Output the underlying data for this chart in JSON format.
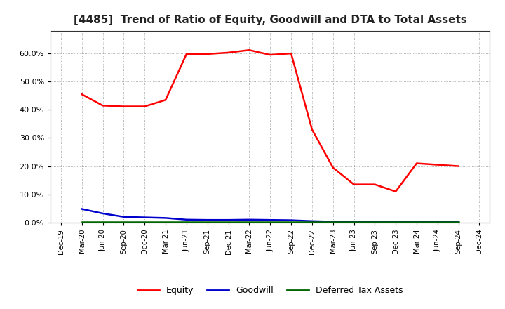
{
  "title": "[4485]  Trend of Ratio of Equity, Goodwill and DTA to Total Assets",
  "title_fontsize": 11,
  "x_labels": [
    "Dec-19",
    "Mar-20",
    "Jun-20",
    "Sep-20",
    "Dec-20",
    "Mar-21",
    "Jun-21",
    "Sep-21",
    "Dec-21",
    "Mar-22",
    "Jun-22",
    "Sep-22",
    "Dec-22",
    "Mar-23",
    "Jun-23",
    "Sep-23",
    "Dec-23",
    "Mar-24",
    "Jun-24",
    "Sep-24",
    "Dec-24"
  ],
  "equity": [
    null,
    45.5,
    41.5,
    41.2,
    41.2,
    43.5,
    59.8,
    59.8,
    60.3,
    61.2,
    59.5,
    60.0,
    33.0,
    19.5,
    13.5,
    13.5,
    11.0,
    21.0,
    20.5,
    20.0,
    null
  ],
  "goodwill": [
    null,
    4.8,
    3.2,
    2.0,
    1.8,
    1.6,
    1.0,
    0.9,
    0.9,
    1.0,
    0.9,
    0.8,
    0.5,
    0.3,
    0.3,
    0.3,
    0.3,
    0.3,
    0.2,
    0.2,
    null
  ],
  "dta": [
    null,
    0.1,
    0.1,
    0.1,
    0.1,
    0.1,
    0.1,
    0.1,
    0.1,
    0.1,
    0.1,
    0.1,
    0.1,
    0.1,
    0.1,
    0.1,
    0.1,
    0.1,
    0.1,
    0.1,
    null
  ],
  "equity_color": "#ff0000",
  "goodwill_color": "#0000cc",
  "dta_color": "#006600",
  "plot_bg": "#ffffff",
  "fig_bg": "#ffffff",
  "grid_color": "#999999",
  "spine_color": "#333333",
  "yticks": [
    0.0,
    0.1,
    0.2,
    0.3,
    0.4,
    0.5,
    0.6
  ],
  "ylim": [
    0.0,
    0.68
  ],
  "legend_labels": [
    "Equity",
    "Goodwill",
    "Deferred Tax Assets"
  ]
}
